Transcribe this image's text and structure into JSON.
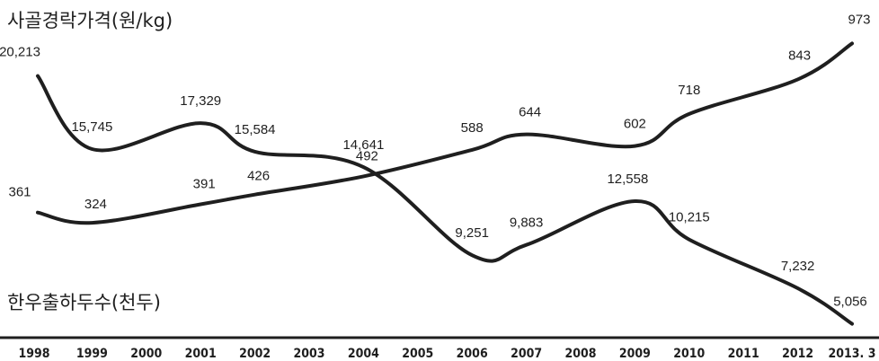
{
  "chart_data": {
    "type": "line",
    "categories": [
      "1998",
      "1999",
      "2000",
      "2001",
      "2002",
      "2003",
      "2004",
      "2005",
      "2006",
      "2007",
      "2008",
      "2009",
      "2010",
      "2011",
      "2012",
      "2013. 3"
    ],
    "series": [
      {
        "name": "사골경락가격(원/kg)",
        "points": [
          {
            "x": "1998",
            "value": 20213,
            "label": "20,213"
          },
          {
            "x": "1999",
            "value": 15745,
            "label": "15,745"
          },
          {
            "x": "2001",
            "value": 17329,
            "label": "17,329"
          },
          {
            "x": "2002",
            "value": 15584,
            "label": "15,584"
          },
          {
            "x": "2004",
            "value": 14641,
            "label": "14,641"
          },
          {
            "x": "2006",
            "value": 9251,
            "label": "9,251"
          },
          {
            "x": "2007",
            "value": 9883,
            "label": "9,883"
          },
          {
            "x": "2009",
            "value": 12558,
            "label": "12,558"
          },
          {
            "x": "2010",
            "value": 10215,
            "label": "10,215"
          },
          {
            "x": "2012",
            "value": 7232,
            "label": "7,232"
          },
          {
            "x": "2013. 3",
            "value": 5056,
            "label": "5,056"
          }
        ]
      },
      {
        "name": "한우출하두수(천두)",
        "points": [
          {
            "x": "1998",
            "value": 361,
            "label": "361"
          },
          {
            "x": "1999",
            "value": 324,
            "label": "324"
          },
          {
            "x": "2001",
            "value": 391,
            "label": "391"
          },
          {
            "x": "2002",
            "value": 426,
            "label": "426"
          },
          {
            "x": "2004",
            "value": 492,
            "label": "492"
          },
          {
            "x": "2006",
            "value": 588,
            "label": "588"
          },
          {
            "x": "2007",
            "value": 644,
            "label": "644"
          },
          {
            "x": "2009",
            "value": 602,
            "label": "602"
          },
          {
            "x": "2010",
            "value": 718,
            "label": "718"
          },
          {
            "x": "2012",
            "value": 843,
            "label": "843"
          },
          {
            "x": "2013. 3",
            "value": 973,
            "label": "973"
          }
        ]
      }
    ],
    "grid": false,
    "legend": "none"
  }
}
